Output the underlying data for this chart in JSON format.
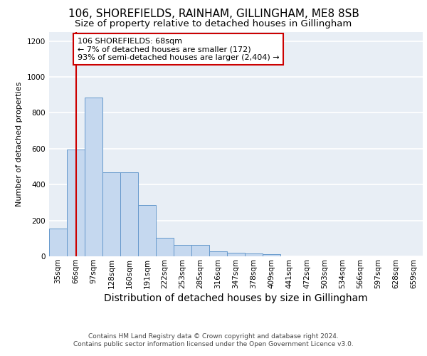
{
  "title1": "106, SHOREFIELDS, RAINHAM, GILLINGHAM, ME8 8SB",
  "title2": "Size of property relative to detached houses in Gillingham",
  "xlabel": "Distribution of detached houses by size in Gillingham",
  "ylabel": "Number of detached properties",
  "footer1": "Contains HM Land Registry data © Crown copyright and database right 2024.",
  "footer2": "Contains public sector information licensed under the Open Government Licence v3.0.",
  "bar_labels": [
    "35sqm",
    "66sqm",
    "97sqm",
    "128sqm",
    "160sqm",
    "191sqm",
    "222sqm",
    "253sqm",
    "285sqm",
    "316sqm",
    "347sqm",
    "378sqm",
    "409sqm",
    "441sqm",
    "472sqm",
    "503sqm",
    "534sqm",
    "566sqm",
    "597sqm",
    "628sqm",
    "659sqm"
  ],
  "bar_values": [
    155,
    595,
    885,
    468,
    468,
    285,
    105,
    62,
    62,
    28,
    18,
    15,
    12,
    0,
    0,
    0,
    0,
    0,
    0,
    0,
    0
  ],
  "bar_color": "#c5d8ef",
  "bar_edge_color": "#6699cc",
  "annotation_line1": "106 SHOREFIELDS: 68sqm",
  "annotation_line2": "← 7% of detached houses are smaller (172)",
  "annotation_line3": "93% of semi-detached houses are larger (2,404) →",
  "vline_x": 1.0,
  "vline_color": "#cc0000",
  "annotation_box_facecolor": "#ffffff",
  "annotation_box_edgecolor": "#cc0000",
  "ylim": [
    0,
    1250
  ],
  "yticks": [
    0,
    200,
    400,
    600,
    800,
    1000,
    1200
  ],
  "background_color": "#e8eef5",
  "grid_color": "#ffffff",
  "title1_fontsize": 11,
  "title2_fontsize": 9.5,
  "ylabel_fontsize": 8,
  "xlabel_fontsize": 10,
  "footer_fontsize": 6.5,
  "tick_fontsize": 7.5,
  "annot_fontsize": 8
}
